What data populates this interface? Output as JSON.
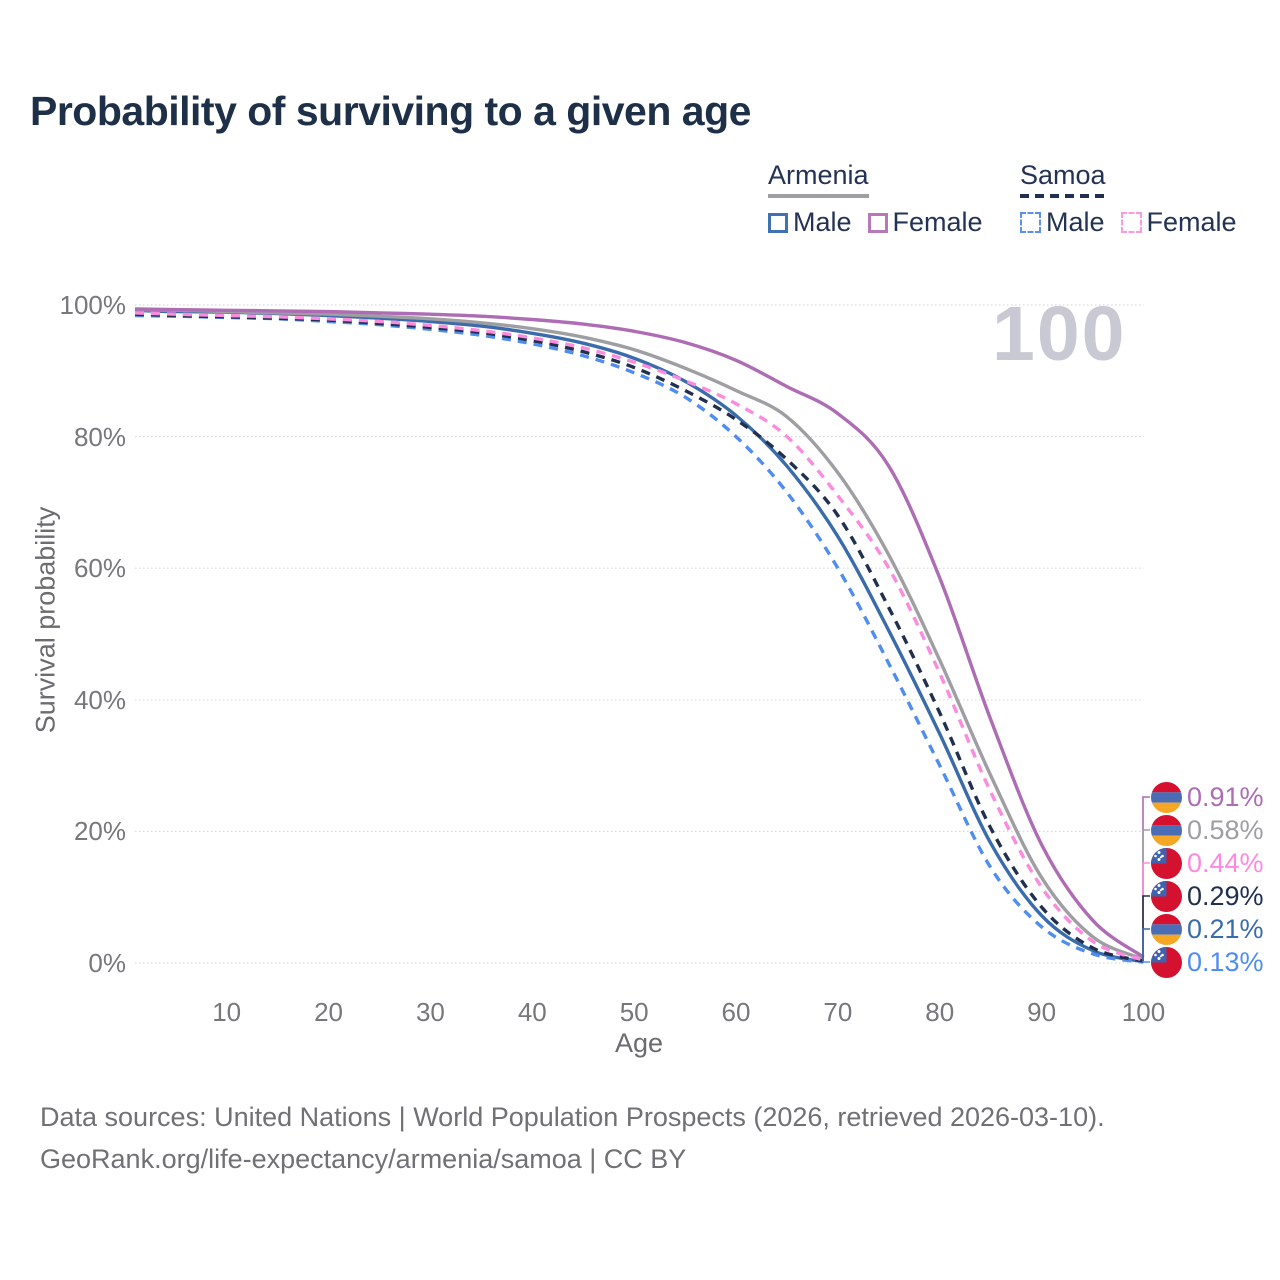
{
  "title": "Probability of surviving to a given age",
  "watermark": "100",
  "legend": {
    "groups": [
      {
        "label": "Armenia",
        "line_style": "solid",
        "underline_color": "#9e9ea3",
        "items": [
          {
            "label": "Male",
            "color": "#3f72b3",
            "dashed": false
          },
          {
            "label": "Female",
            "color": "#b77ab8",
            "dashed": false
          }
        ]
      },
      {
        "label": "Samoa",
        "line_style": "dashed",
        "underline_color": "#22304f",
        "items": [
          {
            "label": "Male",
            "color": "#5b8ff0",
            "dashed": true
          },
          {
            "label": "Female",
            "color": "#fb9ae4",
            "dashed": true
          }
        ]
      }
    ]
  },
  "chart_data": {
    "type": "line",
    "title": "Probability of surviving to a given age",
    "xlabel": "Age",
    "ylabel": "Survival probability",
    "xlim": [
      1,
      100
    ],
    "ylim": [
      0,
      100
    ],
    "grid": true,
    "legend_position": "top-right",
    "x_ticks": [
      "10",
      "20",
      "30",
      "40",
      "50",
      "60",
      "70",
      "80",
      "90",
      "100"
    ],
    "x_tick_values": [
      10,
      20,
      30,
      40,
      50,
      60,
      70,
      80,
      90,
      100
    ],
    "y_ticks": [
      "0%",
      "20%",
      "40%",
      "60%",
      "80%",
      "100%"
    ],
    "y_tick_values": [
      0,
      20,
      40,
      60,
      80,
      100
    ],
    "ages": [
      1,
      5,
      10,
      15,
      20,
      25,
      30,
      35,
      40,
      45,
      50,
      55,
      60,
      65,
      70,
      75,
      80,
      85,
      90,
      95,
      100
    ],
    "series": [
      {
        "name": "Armenia Female",
        "country": "Armenia",
        "sex": "Female",
        "color": "#ad6cb4",
        "dashed": false,
        "end_label": "0.91%",
        "values": [
          99.4,
          99.3,
          99.2,
          99.1,
          99.0,
          98.8,
          98.6,
          98.3,
          97.8,
          97.1,
          96.0,
          94.3,
          91.6,
          87.6,
          83.5,
          75.5,
          58.5,
          37.0,
          18.0,
          6.5,
          0.91
        ]
      },
      {
        "name": "Armenia Both sexes",
        "country": "Armenia",
        "sex": "Both",
        "color": "#9e9ea3",
        "dashed": false,
        "end_label": "0.58%",
        "values": [
          99.3,
          99.2,
          99.0,
          98.8,
          98.6,
          98.3,
          97.9,
          97.3,
          96.4,
          95.1,
          93.2,
          90.4,
          87.0,
          83.0,
          74.5,
          62.0,
          46.0,
          28.5,
          13.0,
          4.0,
          0.58
        ]
      },
      {
        "name": "Armenia Male",
        "country": "Armenia",
        "sex": "Male",
        "color": "#3a6cac",
        "dashed": false,
        "end_label": "0.21%",
        "values": [
          99.2,
          99.0,
          98.9,
          98.7,
          98.4,
          98.0,
          97.5,
          96.8,
          95.7,
          94.2,
          91.9,
          88.4,
          83.2,
          75.5,
          64.8,
          50.5,
          34.8,
          18.2,
          7.2,
          1.9,
          0.21
        ]
      },
      {
        "name": "Samoa Female",
        "country": "Samoa",
        "sex": "Female",
        "color": "#fc8be0",
        "dashed": true,
        "end_label": "0.44%",
        "values": [
          98.8,
          98.6,
          98.4,
          98.2,
          97.9,
          97.5,
          96.9,
          96.1,
          95.0,
          93.5,
          91.3,
          88.5,
          85.0,
          80.0,
          71.0,
          60.0,
          44.0,
          26.0,
          11.5,
          3.3,
          0.44
        ]
      },
      {
        "name": "Samoa Both sexes",
        "country": "Samoa",
        "sex": "Both",
        "color": "#22304f",
        "dashed": true,
        "end_label": "0.29%",
        "values": [
          98.6,
          98.4,
          98.2,
          98.0,
          97.7,
          97.2,
          96.6,
          95.8,
          94.6,
          92.9,
          90.5,
          87.0,
          82.6,
          76.5,
          68.0,
          54.0,
          38.0,
          20.5,
          8.5,
          2.3,
          0.29
        ]
      },
      {
        "name": "Samoa Male",
        "country": "Samoa",
        "sex": "Male",
        "color": "#4f8df0",
        "dashed": true,
        "end_label": "0.13%",
        "values": [
          98.4,
          98.3,
          98.1,
          97.9,
          97.5,
          97.0,
          96.3,
          95.4,
          94.1,
          92.3,
          89.7,
          86.0,
          80.0,
          71.5,
          60.0,
          45.5,
          30.0,
          14.5,
          5.5,
          1.4,
          0.13
        ]
      }
    ],
    "end_labels_top_to_bottom": [
      "0.91%",
      "0.58%",
      "0.44%",
      "0.29%",
      "0.21%",
      "0.13%"
    ]
  },
  "flag_colors": {
    "armenia": {
      "red": "#d7102f",
      "blue": "#4a6db5",
      "orange": "#f5a623"
    },
    "samoa": {
      "red": "#d51130",
      "blue": "#3f62ae",
      "star": "#ffffff"
    }
  },
  "footer": {
    "line1": "Data sources: United Nations | World Population Prospects (2026, retrieved 2026-03-10).",
    "line2": "GeoRank.org/life-expectancy/armenia/samoa | CC BY"
  }
}
